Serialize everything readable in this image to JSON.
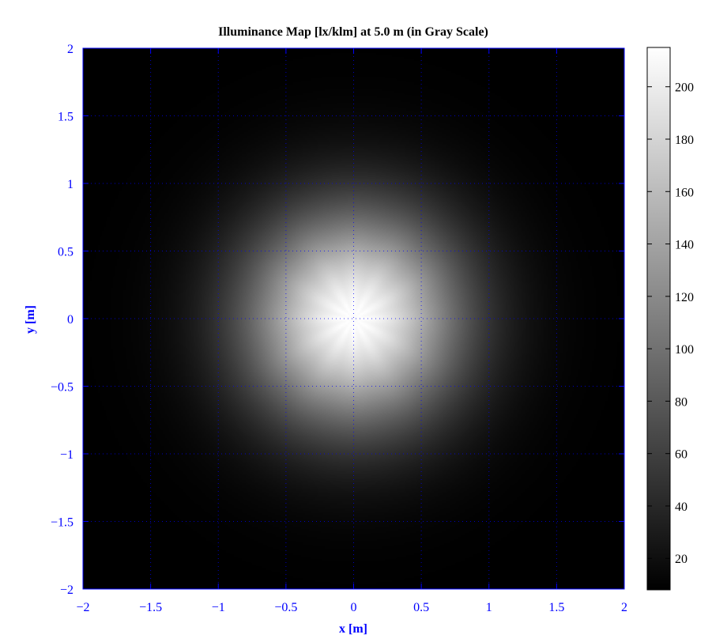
{
  "chart_data": {
    "type": "heatmap",
    "title": "Illuminance Map [lx/klm] at 5.0 m (in Gray Scale)",
    "xlabel": "x [m]",
    "ylabel": "y [m]",
    "xlim": [
      -2,
      2
    ],
    "ylim": [
      -2,
      2
    ],
    "x_ticks": [
      "−2",
      "−1.5",
      "−1",
      "−0.5",
      "0",
      "0.5",
      "1",
      "1.5",
      "2"
    ],
    "y_ticks": [
      "2",
      "1.5",
      "1",
      "0.5",
      "0",
      "−0.5",
      "−1",
      "−1.5",
      "−2"
    ],
    "x_tick_values": [
      -2,
      -1.5,
      -1,
      -0.5,
      0,
      0.5,
      1,
      1.5,
      2
    ],
    "y_tick_values": [
      2,
      1.5,
      1,
      0.5,
      0,
      -0.5,
      -1,
      -1.5,
      -2
    ],
    "grid": "dotted",
    "colormap": "gray",
    "colorbar": {
      "range": [
        8,
        215
      ],
      "ticks": [
        "200",
        "180",
        "160",
        "140",
        "120",
        "100",
        "80",
        "60",
        "40",
        "20"
      ],
      "tick_values": [
        200,
        180,
        160,
        140,
        120,
        100,
        80,
        60,
        40,
        20
      ]
    },
    "peak": {
      "x": 0,
      "y": 0,
      "value": 215
    },
    "corner_value": 8
  },
  "colors": {
    "axis": "#0000ff",
    "text_axis": "#0000ff",
    "title": "#000000",
    "colorbar_text": "#000000",
    "background": "#ffffff"
  }
}
